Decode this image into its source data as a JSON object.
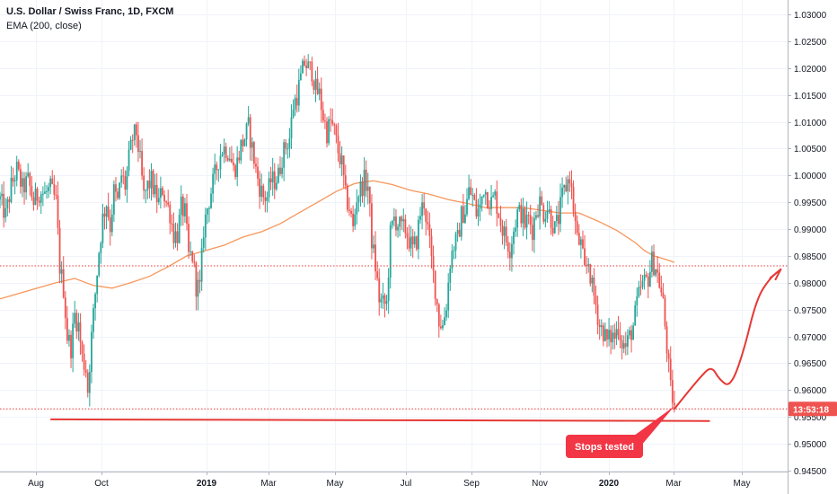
{
  "header": {
    "title": "U.S. Dollar / Swiss Franc, 1D, FXCM",
    "indicator": "EMA (200, close)"
  },
  "chart_data": {
    "type": "candlestick",
    "instrument": "U.S. Dollar / Swiss Franc",
    "timeframe": "1D",
    "source": "FXCM",
    "ylim": [
      0.9445,
      1.0315
    ],
    "y_ticks": [
      "1.03000",
      "1.02500",
      "1.02000",
      "1.01500",
      "1.01000",
      "1.00500",
      "1.00000",
      "0.99500",
      "0.99000",
      "0.98500",
      "0.98000",
      "0.97500",
      "0.97000",
      "0.96500",
      "0.96000",
      "0.95500",
      "0.95000",
      "0.94500"
    ],
    "x_ticks": [
      {
        "label": "Aug",
        "bold": false
      },
      {
        "label": "Oct",
        "bold": false
      },
      {
        "label": "2019",
        "bold": true
      },
      {
        "label": "Mar",
        "bold": false
      },
      {
        "label": "May",
        "bold": false
      },
      {
        "label": "Jul",
        "bold": false
      },
      {
        "label": "Sep",
        "bold": false
      },
      {
        "label": "Nov",
        "bold": false
      },
      {
        "label": "2020",
        "bold": true
      },
      {
        "label": "Mar",
        "bold": false
      },
      {
        "label": "May",
        "bold": false
      }
    ],
    "price_path": [
      [
        0,
        0.9955
      ],
      [
        3,
        0.9925
      ],
      [
        6,
        0.998
      ],
      [
        9,
        1.001
      ],
      [
        12,
        0.9975
      ],
      [
        15,
        0.999
      ],
      [
        18,
        0.995
      ],
      [
        21,
        0.997
      ],
      [
        24,
        0.9965
      ],
      [
        27,
        0.9975
      ],
      [
        30,
        0.995
      ],
      [
        32,
        0.983
      ],
      [
        34,
        0.979
      ],
      [
        36,
        0.97
      ],
      [
        38,
        0.968
      ],
      [
        40,
        0.974
      ],
      [
        42,
        0.972
      ],
      [
        44,
        0.966
      ],
      [
        46,
        0.964
      ],
      [
        47,
        0.96
      ],
      [
        49,
        0.97
      ],
      [
        51,
        0.978
      ],
      [
        53,
        0.986
      ],
      [
        55,
        0.992
      ],
      [
        57,
        0.995
      ],
      [
        59,
        0.9905
      ],
      [
        61,
        0.997
      ],
      [
        63,
        0.995
      ],
      [
        65,
        1.0
      ],
      [
        67,
        0.998
      ],
      [
        69,
        1.003
      ],
      [
        71,
        1.007
      ],
      [
        73,
        1.008
      ],
      [
        75,
        1.0025
      ],
      [
        77,
        0.996
      ],
      [
        79,
        0.998
      ],
      [
        81,
        0.999
      ],
      [
        83,
        0.9965
      ],
      [
        85,
        0.995
      ],
      [
        87,
        0.9975
      ],
      [
        89,
        0.995
      ],
      [
        91,
        0.993
      ],
      [
        93,
        0.989
      ],
      [
        95,
        0.989
      ],
      [
        97,
        0.994
      ],
      [
        99,
        0.993
      ],
      [
        101,
        0.985
      ],
      [
        103,
        0.985
      ],
      [
        105,
        0.9795
      ],
      [
        107,
        0.979
      ],
      [
        109,
        0.99
      ],
      [
        111,
        0.994
      ],
      [
        113,
        0.997
      ],
      [
        115,
        1.0
      ],
      [
        117,
        1.003
      ],
      [
        119,
        1.005
      ],
      [
        121,
        1.005
      ],
      [
        123,
        1.004
      ],
      [
        125,
        1.001
      ],
      [
        127,
        1.0025
      ],
      [
        129,
        1.0055
      ],
      [
        131,
        1.007
      ],
      [
        133,
        1.009
      ],
      [
        135,
        1.005
      ],
      [
        137,
        1.001
      ],
      [
        139,
        0.998
      ],
      [
        141,
        0.996
      ],
      [
        143,
        0.996
      ],
      [
        145,
        0.999
      ],
      [
        147,
        0.999
      ],
      [
        149,
        1.0
      ],
      [
        151,
        1.0035
      ],
      [
        153,
        1.0055
      ],
      [
        155,
        1.007
      ],
      [
        157,
        1.013
      ],
      [
        159,
        1.015
      ],
      [
        161,
        1.018
      ],
      [
        163,
        1.021
      ],
      [
        165,
        1.02
      ],
      [
        167,
        1.0195
      ],
      [
        169,
        1.016
      ],
      [
        171,
        1.015
      ],
      [
        173,
        1.011
      ],
      [
        175,
        1.008
      ],
      [
        177,
        1.01
      ],
      [
        179,
        1.008
      ],
      [
        181,
        1.0045
      ],
      [
        183,
        1.002
      ],
      [
        185,
        0.996
      ],
      [
        187,
        0.994
      ],
      [
        189,
        0.99
      ],
      [
        191,
        0.996
      ],
      [
        193,
        0.9975
      ],
      [
        195,
        0.999
      ],
      [
        197,
        0.998
      ],
      [
        199,
        0.988
      ],
      [
        201,
        0.983
      ],
      [
        203,
        0.977
      ],
      [
        205,
        0.976
      ],
      [
        207,
        0.976
      ],
      [
        209,
        0.989
      ],
      [
        211,
        0.992
      ],
      [
        213,
        0.991
      ],
      [
        215,
        0.99
      ],
      [
        217,
        0.99
      ],
      [
        219,
        0.988
      ],
      [
        221,
        0.986
      ],
      [
        223,
        0.988
      ],
      [
        225,
        0.993
      ],
      [
        227,
        0.995
      ],
      [
        229,
        0.99
      ],
      [
        231,
        0.984
      ],
      [
        233,
        0.979
      ],
      [
        235,
        0.973
      ],
      [
        237,
        0.972
      ],
      [
        239,
        0.976
      ],
      [
        241,
        0.984
      ],
      [
        243,
        0.987
      ],
      [
        245,
        0.988
      ],
      [
        247,
        0.9925
      ],
      [
        249,
        0.9935
      ],
      [
        251,
        0.997
      ],
      [
        253,
        0.996
      ],
      [
        255,
        0.993
      ],
      [
        257,
        0.994
      ],
      [
        259,
        0.998
      ],
      [
        261,
        0.996
      ],
      [
        263,
        0.995
      ],
      [
        265,
        0.996
      ],
      [
        267,
        0.993
      ],
      [
        269,
        0.99
      ],
      [
        271,
        0.988
      ],
      [
        273,
        0.9865
      ],
      [
        275,
        0.99
      ],
      [
        277,
        0.993
      ],
      [
        279,
        0.993
      ],
      [
        281,
        0.991
      ],
      [
        283,
        0.992
      ],
      [
        285,
        0.99
      ],
      [
        287,
        0.9935
      ],
      [
        289,
        0.995
      ],
      [
        291,
        0.993
      ],
      [
        293,
        0.994
      ],
      [
        295,
        0.992
      ],
      [
        297,
        0.99
      ],
      [
        299,
        0.992
      ],
      [
        301,
        0.996
      ],
      [
        303,
        0.998
      ],
      [
        305,
        1.0
      ],
      [
        307,
        0.994
      ],
      [
        309,
        0.988
      ],
      [
        311,
        0.987
      ],
      [
        313,
        0.982
      ],
      [
        315,
        0.984
      ],
      [
        317,
        0.979
      ],
      [
        319,
        0.976
      ],
      [
        321,
        0.972
      ],
      [
        323,
        0.971
      ],
      [
        325,
        0.969
      ],
      [
        327,
        0.97
      ],
      [
        329,
        0.97
      ],
      [
        331,
        0.972
      ],
      [
        333,
        0.969
      ],
      [
        335,
        0.968
      ],
      [
        337,
        0.97
      ],
      [
        339,
        0.972
      ],
      [
        341,
        0.976
      ],
      [
        343,
        0.979
      ],
      [
        345,
        0.98
      ],
      [
        347,
        0.981
      ],
      [
        349,
        0.984
      ],
      [
        351,
        0.983
      ],
      [
        353,
        0.98
      ],
      [
        355,
        0.976
      ],
      [
        357,
        0.968
      ],
      [
        359,
        0.96
      ],
      [
        361,
        0.957
      ]
    ],
    "ema_path": [
      [
        0,
        0.977
      ],
      [
        10,
        0.978
      ],
      [
        20,
        0.979
      ],
      [
        30,
        0.98
      ],
      [
        40,
        0.9808
      ],
      [
        50,
        0.9795
      ],
      [
        60,
        0.979
      ],
      [
        70,
        0.98
      ],
      [
        80,
        0.9812
      ],
      [
        90,
        0.983
      ],
      [
        100,
        0.985
      ],
      [
        110,
        0.986
      ],
      [
        120,
        0.987
      ],
      [
        130,
        0.9885
      ],
      [
        140,
        0.9895
      ],
      [
        150,
        0.991
      ],
      [
        160,
        0.993
      ],
      [
        170,
        0.995
      ],
      [
        180,
        0.997
      ],
      [
        190,
        0.9985
      ],
      [
        195,
        0.9988
      ],
      [
        200,
        0.999
      ],
      [
        210,
        0.9983
      ],
      [
        220,
        0.9972
      ],
      [
        230,
        0.9965
      ],
      [
        240,
        0.9955
      ],
      [
        250,
        0.9948
      ],
      [
        260,
        0.994
      ],
      [
        270,
        0.994
      ],
      [
        280,
        0.994
      ],
      [
        290,
        0.9935
      ],
      [
        300,
        0.993
      ],
      [
        310,
        0.993
      ],
      [
        320,
        0.9915
      ],
      [
        330,
        0.9898
      ],
      [
        340,
        0.9875
      ],
      [
        345,
        0.986
      ],
      [
        350,
        0.985
      ],
      [
        355,
        0.9845
      ],
      [
        361,
        0.9838
      ]
    ],
    "current_price": {
      "value": 0.9565,
      "label": "13:53:18"
    },
    "resistance_level": 0.98314,
    "support_line": {
      "from": [
        27,
        0.95455
      ],
      "to": [
        380,
        0.95425
      ]
    },
    "projection": [
      [
        361,
        0.9565
      ],
      [
        375,
        0.9625
      ],
      [
        381,
        0.9645
      ],
      [
        385,
        0.962
      ],
      [
        391,
        0.9605
      ],
      [
        398,
        0.967
      ],
      [
        405,
        0.977
      ],
      [
        412,
        0.9808
      ],
      [
        418,
        0.9825
      ]
    ],
    "projection_arrow_head": [
      [
        412,
        0.9808
      ],
      [
        418,
        0.9825
      ],
      [
        415,
        0.9805
      ]
    ],
    "annotation": {
      "text": "Stops  tested",
      "pointer_to": [
        361,
        0.957
      ]
    }
  }
}
